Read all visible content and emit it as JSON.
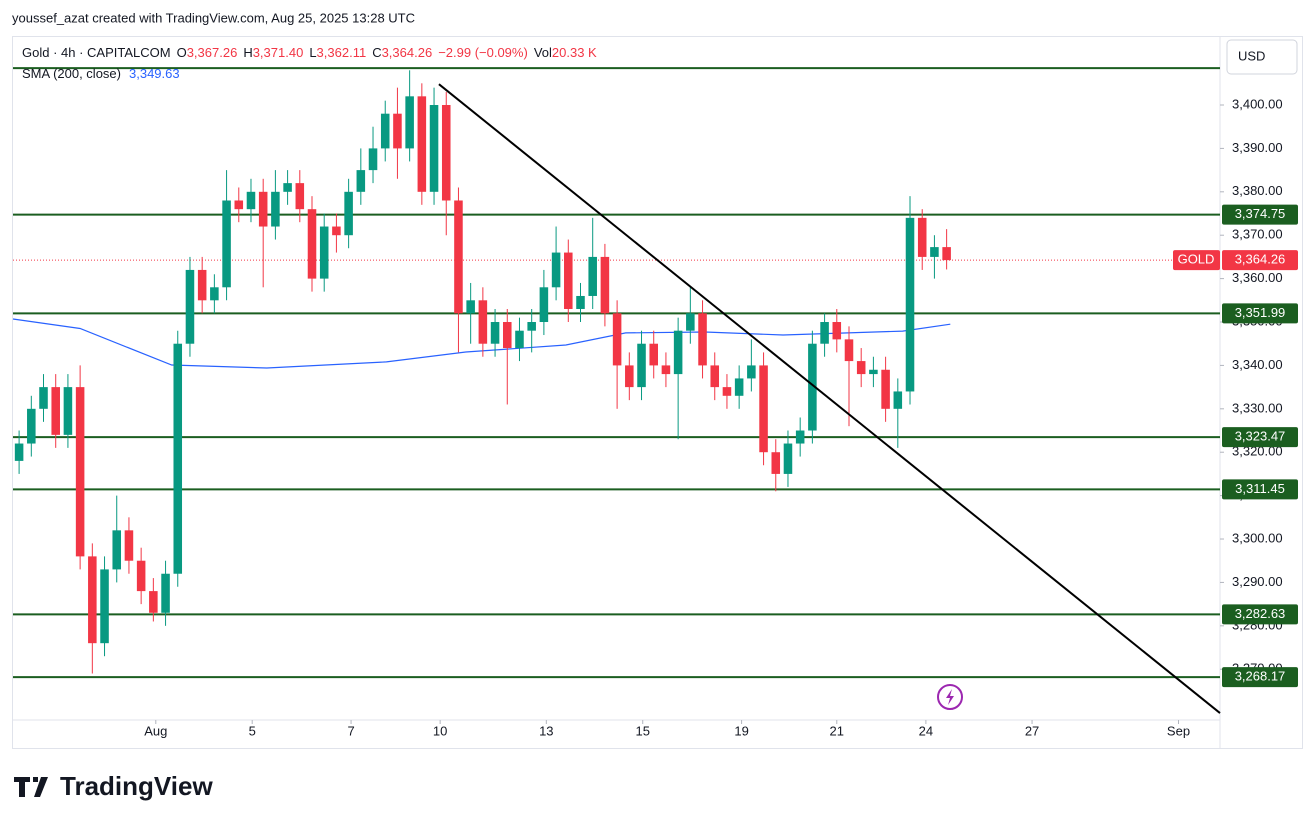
{
  "header": {
    "credit": "youssef_azat created with TradingView.com, Aug 25, 2025 13:28 UTC"
  },
  "legend": {
    "symbol": "Gold · 4h · CAPITALCOM",
    "items": [
      {
        "label": "O",
        "value": "3,367.26"
      },
      {
        "label": "H",
        "value": "3,371.40"
      },
      {
        "label": "L",
        "value": "3,362.11"
      },
      {
        "label": "C",
        "value": "3,364.26"
      }
    ],
    "change": "−2.99 (−0.09%)",
    "vol_label": "Vol",
    "vol_value": "20.33 K"
  },
  "footer": {
    "brand": "TradingView"
  },
  "chart_data": {
    "type": "candlestick",
    "currency": "USD",
    "symbol_badge": "GOLD",
    "up_color": "#089981",
    "down_color": "#f23645",
    "open": [
      3318,
      3322,
      3330,
      3335,
      3324,
      3335,
      3296,
      3276,
      3293,
      3302,
      3295,
      3288,
      3283,
      3292,
      3345,
      3362,
      3355,
      3358,
      3378,
      3376,
      3380,
      3372,
      3380,
      3382,
      3376,
      3360,
      3372,
      3370,
      3380,
      3385,
      3390,
      3398,
      3390,
      3402,
      3380,
      3400,
      3378,
      3352,
      3355,
      3345,
      3350,
      3344,
      3348,
      3350,
      3358,
      3366,
      3353,
      3356,
      3365,
      3352,
      3340,
      3335,
      3345,
      3340,
      3338,
      3348,
      3352,
      3340,
      3335,
      3333,
      3337,
      3340,
      3320,
      3315,
      3322,
      3325,
      3345,
      3350,
      3346,
      3341,
      3338,
      3339,
      3330,
      3334,
      3374,
      3365,
      3367.26
    ],
    "high": [
      3325,
      3333,
      3338,
      3338,
      3338,
      3340,
      3299,
      3296,
      3310,
      3305,
      3298,
      3291,
      3295,
      3348,
      3365,
      3365,
      3361,
      3385,
      3381,
      3383,
      3383,
      3385,
      3385,
      3385,
      3379,
      3375,
      3375,
      3383,
      3390,
      3395,
      3401,
      3404,
      3408,
      3405,
      3404,
      3403,
      3381,
      3359,
      3358,
      3353,
      3353,
      3351,
      3353,
      3362,
      3372,
      3369,
      3359,
      3374,
      3368,
      3355,
      3343,
      3348,
      3348,
      3343,
      3351,
      3358,
      3355,
      3343,
      3338,
      3340,
      3346,
      3343,
      3323,
      3325,
      3328,
      3348,
      3352,
      3353,
      3349,
      3344,
      3342,
      3342,
      3337,
      3379,
      3376,
      3370,
      3371.4
    ],
    "low": [
      3315,
      3319,
      3327,
      3321,
      3321,
      3293,
      3269,
      3273,
      3290,
      3292,
      3285,
      3281,
      3280,
      3289,
      3342,
      3352,
      3352,
      3355,
      3373,
      3373,
      3358,
      3369,
      3377,
      3373,
      3357,
      3357,
      3366,
      3367,
      3377,
      3382,
      3387,
      3383,
      3387,
      3377,
      3377,
      3370,
      3343,
      3345,
      3342,
      3342,
      3331,
      3341,
      3343,
      3347,
      3355,
      3350,
      3350,
      3353,
      3349,
      3330,
      3332,
      3332,
      3337,
      3335,
      3323,
      3345,
      3337,
      3332,
      3330,
      3330,
      3334,
      3317,
      3311,
      3312,
      3319,
      3322,
      3342,
      3343,
      3326,
      3335,
      3335,
      3327,
      3321,
      3331,
      3362,
      3360,
      3362.11
    ],
    "close": [
      3322,
      3330,
      3335,
      3324,
      3335,
      3296,
      3276,
      3293,
      3302,
      3295,
      3288,
      3283,
      3292,
      3345,
      3362,
      3355,
      3358,
      3378,
      3376,
      3380,
      3372,
      3380,
      3382,
      3376,
      3360,
      3372,
      3370,
      3380,
      3385,
      3390,
      3398,
      3390,
      3402,
      3380,
      3400,
      3378,
      3352,
      3355,
      3345,
      3350,
      3344,
      3348,
      3350,
      3358,
      3366,
      3353,
      3356,
      3365,
      3352,
      3340,
      3335,
      3345,
      3340,
      3338,
      3348,
      3352,
      3340,
      3335,
      3333,
      3337,
      3340,
      3320,
      3315,
      3322,
      3325,
      3345,
      3350,
      3346,
      3341,
      3338,
      3339,
      3330,
      3334,
      3374,
      3365,
      3367.26,
      3364.26
    ],
    "close_label": "3,364.26",
    "sma": {
      "name": "SMA (200, close)",
      "value_label": "3,349.63",
      "color": "#2962ff",
      "x": [
        -0.5,
        5,
        12.5,
        20.3,
        30.1,
        36.6,
        44.8,
        49.7,
        56.2,
        62.6,
        72.4,
        76.3
      ],
      "values": [
        3350.7,
        3348.5,
        3340.1,
        3339.4,
        3340.8,
        3343.1,
        3344.7,
        3347.5,
        3347.7,
        3347.0,
        3347.9,
        3349.5
      ]
    },
    "levels": [
      {
        "value": 3374.75,
        "label": "3,374.75"
      },
      {
        "value": 3351.99,
        "label": "3,351.99"
      },
      {
        "value": 3323.47,
        "label": "3,323.47"
      },
      {
        "value": 3311.45,
        "label": "3,311.45"
      },
      {
        "value": 3282.63,
        "label": "3,282.63"
      },
      {
        "value": 3268.17,
        "label": "3,268.17"
      }
    ],
    "unlabeled_levels": [
      3408.5
    ],
    "level_color": "#1b5e20",
    "trendline": {
      "x": [
        34.4,
        98.4
      ],
      "values": [
        3404.8,
        3259.9
      ]
    },
    "xlim": [
      -0.5,
      98.4
    ],
    "ylim": [
      3258.3,
      3415.9
    ],
    "yticks": [
      {
        "value": 3270,
        "label": "3,270.00"
      },
      {
        "value": 3280,
        "label": "3,280.00"
      },
      {
        "value": 3290,
        "label": "3,290.00"
      },
      {
        "value": 3300,
        "label": "3,300.00"
      },
      {
        "value": 3310,
        "label": "3,310.00"
      },
      {
        "value": 3320,
        "label": "3,320.00"
      },
      {
        "value": 3330,
        "label": "3,330.00"
      },
      {
        "value": 3340,
        "label": "3,340.00"
      },
      {
        "value": 3350,
        "label": "3,350.00"
      },
      {
        "value": 3360,
        "label": "3,360.00"
      },
      {
        "value": 3370,
        "label": "3,370.00"
      },
      {
        "value": 3380,
        "label": "3,380.00"
      },
      {
        "value": 3390,
        "label": "3,390.00"
      },
      {
        "value": 3400,
        "label": "3,400.00"
      }
    ],
    "xticks": [
      {
        "value": 11.2,
        "label": "Aug"
      },
      {
        "value": 19.1,
        "label": "5"
      },
      {
        "value": 27.2,
        "label": "7"
      },
      {
        "value": 34.5,
        "label": "10"
      },
      {
        "value": 43.2,
        "label": "13"
      },
      {
        "value": 51.1,
        "label": "15"
      },
      {
        "value": 59.2,
        "label": "19"
      },
      {
        "value": 67.0,
        "label": "21"
      },
      {
        "value": 74.3,
        "label": "24"
      },
      {
        "value": 83.0,
        "label": "27"
      },
      {
        "value": 95.0,
        "label": "Sep"
      }
    ]
  }
}
